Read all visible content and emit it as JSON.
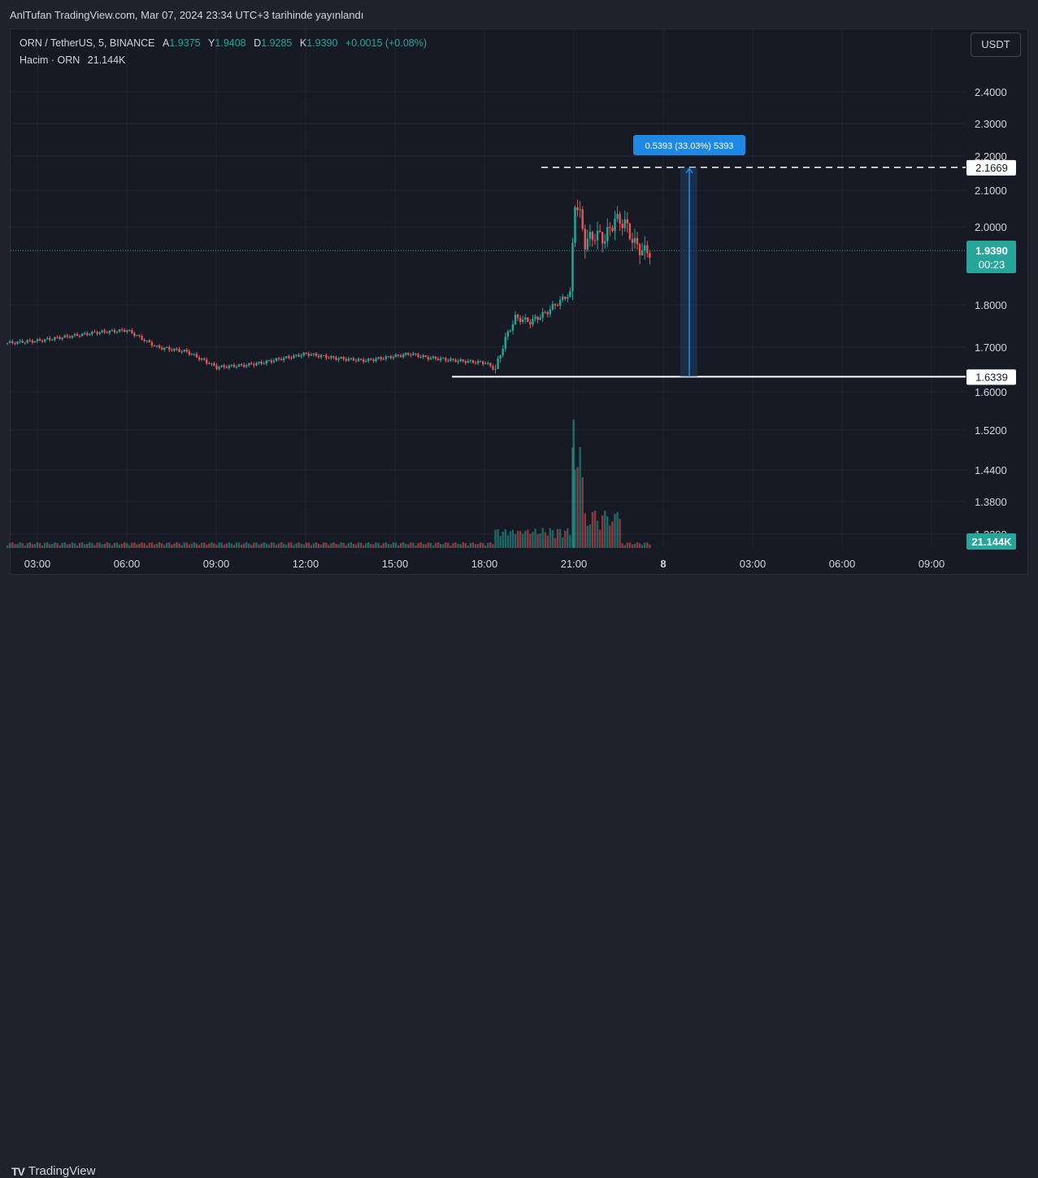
{
  "published": "AnlTufan TradingView.com, Mar 07, 2024 23:34 UTC+3 tarihinde yayınlandı",
  "legend": {
    "symbol": "ORN / TetherUS, 5, BINANCE",
    "open_label": "A",
    "open": "1.9375",
    "high_label": "Y",
    "high": "1.9408",
    "low_label": "D",
    "low": "1.9285",
    "close_label": "K",
    "close": "1.9390",
    "change": "+0.0015 (+0.08%)",
    "volume_label": "Hacim · ORN",
    "volume": "21.144K"
  },
  "currency_button": "USDT",
  "brand": {
    "mark": "TV",
    "name": "TradingView"
  },
  "colors": {
    "up": "#26a69a",
    "down": "#ef5350",
    "accent": "#2962ff",
    "measure": "#1e88e5",
    "background": "#161a25",
    "grid": "#232733",
    "text": "#d1d4dc"
  },
  "chart_data": {
    "type": "candlestick",
    "y_ticks": [
      "2.4000",
      "2.3000",
      "2.2000",
      "2.1000",
      "2.0000",
      "1.8000",
      "1.7000",
      "1.6000",
      "1.5200",
      "1.4400",
      "1.3800",
      "1.3200"
    ],
    "x_ticks": [
      "03:00",
      "06:00",
      "09:00",
      "12:00",
      "15:00",
      "18:00",
      "21:00",
      "8",
      "03:00",
      "06:00",
      "09:00"
    ],
    "current_price": "1.9390",
    "countdown": "00:23",
    "volume_last": "21.144K",
    "level_high": "2.1669",
    "level_low": "1.6339",
    "measure_label": "0.5393 (33.03%) 5393",
    "price_path": [
      [
        "02:00",
        1.71
      ],
      [
        "03:00",
        1.715
      ],
      [
        "04:00",
        1.725
      ],
      [
        "05:00",
        1.735
      ],
      [
        "06:00",
        1.74
      ],
      [
        "07:00",
        1.7
      ],
      [
        "08:00",
        1.69
      ],
      [
        "09:00",
        1.655
      ],
      [
        "10:00",
        1.66
      ],
      [
        "10:30",
        1.665
      ],
      [
        "11:00",
        1.672
      ],
      [
        "12:00",
        1.685
      ],
      [
        "13:00",
        1.675
      ],
      [
        "14:00",
        1.67
      ],
      [
        "15:00",
        1.68
      ],
      [
        "15:30",
        1.685
      ],
      [
        "16:00",
        1.677
      ],
      [
        "17:00",
        1.67
      ],
      [
        "18:00",
        1.665
      ],
      [
        "18:20",
        1.65
      ],
      [
        "18:40",
        1.72
      ],
      [
        "19:00",
        1.77
      ],
      [
        "19:30",
        1.76
      ],
      [
        "20:00",
        1.78
      ],
      [
        "20:30",
        1.81
      ],
      [
        "20:50",
        1.83
      ],
      [
        "21:00",
        2.07
      ],
      [
        "21:10",
        2.03
      ],
      [
        "21:20",
        1.96
      ],
      [
        "21:40",
        1.98
      ],
      [
        "22:00",
        1.97
      ],
      [
        "22:20",
        2.02
      ],
      [
        "22:40",
        2.01
      ],
      [
        "23:00",
        1.955
      ],
      [
        "23:20",
        1.935
      ],
      [
        "23:34",
        1.939
      ]
    ]
  }
}
